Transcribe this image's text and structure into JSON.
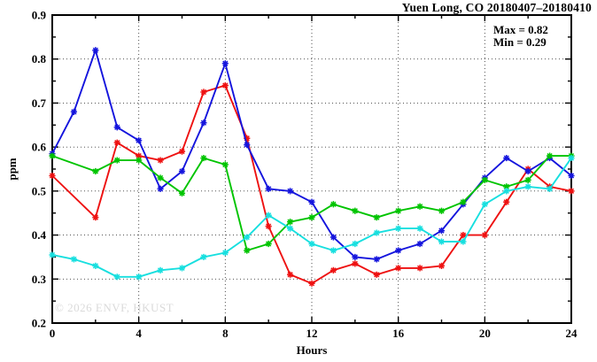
{
  "title": "Yuen Long, CO 20180407–20180410",
  "annotation": {
    "max_label": "Max = 0.82",
    "min_label": "Min = 0.29"
  },
  "watermark": "© 2026 ENVF, HKUST",
  "chart_data": {
    "type": "line",
    "title": "Yuen Long, CO 20180407–20180410",
    "xlabel": "Hours",
    "ylabel": "ppm",
    "xlim": [
      0,
      24
    ],
    "ylim": [
      0.2,
      0.9
    ],
    "grid": "dotted lines at major ticks, all four axes mirrored with inward ticks",
    "legend_position": "none",
    "x_major_ticks": [
      0,
      4,
      8,
      12,
      16,
      20,
      24
    ],
    "x_minor_ticks": [
      2,
      6,
      10,
      14,
      18,
      22
    ],
    "x_tick_labels": [
      "0",
      "4",
      "8",
      "12",
      "16",
      "20",
      "24"
    ],
    "y_major_ticks": [
      0.2,
      0.3,
      0.4,
      0.5,
      0.6,
      0.7,
      0.8,
      0.9
    ],
    "y_minor_ticks": [
      0.25,
      0.35,
      0.45,
      0.55,
      0.65,
      0.75,
      0.85
    ],
    "y_tick_labels": [
      "0.2",
      "0.3",
      "0.4",
      "0.5",
      "0.6",
      "0.7",
      "0.8",
      "0.9"
    ],
    "x_grid": [
      4,
      8,
      12,
      16,
      20
    ],
    "y_grid": [
      0.3,
      0.4,
      0.5,
      0.6,
      0.7,
      0.8
    ],
    "x": [
      0,
      1,
      2,
      3,
      4,
      5,
      6,
      7,
      8,
      9,
      10,
      11,
      12,
      13,
      14,
      15,
      16,
      17,
      18,
      19,
      20,
      21,
      22,
      23,
      24
    ],
    "series": [
      {
        "name": "red-day",
        "color": "#ee1111",
        "values": [
          0.535,
          null,
          0.44,
          0.61,
          0.58,
          0.57,
          0.59,
          0.725,
          0.74,
          0.62,
          0.42,
          0.31,
          0.29,
          0.32,
          0.335,
          0.31,
          0.325,
          0.325,
          0.33,
          0.4,
          0.4,
          0.475,
          0.55,
          0.51,
          0.5
        ]
      },
      {
        "name": "blue-day",
        "color": "#1414dd",
        "values": [
          0.585,
          0.68,
          0.82,
          0.645,
          0.615,
          0.505,
          0.545,
          0.655,
          0.79,
          0.605,
          0.505,
          0.5,
          0.475,
          0.395,
          0.35,
          0.345,
          0.365,
          0.38,
          0.41,
          0.47,
          0.53,
          0.575,
          0.545,
          0.575,
          0.535
        ]
      },
      {
        "name": "green-day",
        "color": "#00c400",
        "values": [
          0.58,
          null,
          0.545,
          0.57,
          0.57,
          0.53,
          0.495,
          0.575,
          0.56,
          0.365,
          0.38,
          0.43,
          0.44,
          0.47,
          0.455,
          0.44,
          0.455,
          0.465,
          0.455,
          0.475,
          0.525,
          0.51,
          0.525,
          0.58,
          0.58
        ]
      },
      {
        "name": "cyan-day",
        "color": "#17dfdf",
        "values": [
          0.355,
          0.345,
          0.33,
          0.305,
          0.305,
          0.32,
          0.325,
          0.35,
          0.36,
          0.395,
          0.445,
          0.415,
          0.38,
          0.365,
          0.38,
          0.405,
          0.415,
          0.415,
          0.385,
          0.385,
          0.47,
          0.5,
          0.51,
          0.505,
          0.575
        ]
      }
    ],
    "stats": {
      "max": 0.82,
      "min": 0.29
    }
  }
}
